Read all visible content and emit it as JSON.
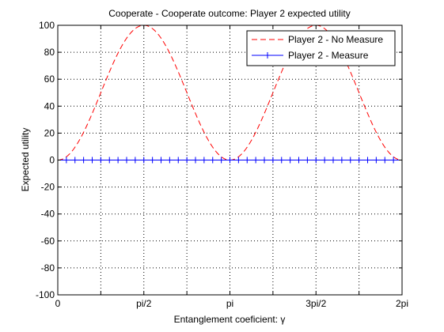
{
  "chart_data": {
    "type": "line",
    "title": "Cooperate - Cooperate outcome: Player 2 expected utility",
    "xlabel": "Entanglement coeficient: γ",
    "ylabel": "Expected utility",
    "xlim": [
      0,
      6.2832
    ],
    "ylim": [
      -100,
      100
    ],
    "xticks": [
      {
        "value": 0,
        "label": "0"
      },
      {
        "value": 1.5708,
        "label": "pi/2"
      },
      {
        "value": 3.1416,
        "label": "pi"
      },
      {
        "value": 4.7124,
        "label": "3pi/2"
      },
      {
        "value": 6.2832,
        "label": "2pi"
      }
    ],
    "x_minor_gridlines": [
      0.7854,
      2.3562,
      3.927,
      5.4978
    ],
    "yticks": [
      -100,
      -80,
      -60,
      -40,
      -20,
      0,
      20,
      40,
      60,
      80,
      100
    ],
    "grid": true,
    "legend_position": "top-right",
    "series": [
      {
        "name": "Player 2 - No Measure",
        "color": "#ff0000",
        "style": "dashed",
        "function": "100*sin(x)^2",
        "x": [
          0,
          0.3142,
          0.6283,
          0.9425,
          1.2566,
          1.5708,
          1.885,
          2.1991,
          2.5133,
          2.8274,
          3.1416,
          3.4558,
          3.7699,
          4.0841,
          4.3982,
          4.7124,
          5.0265,
          5.3407,
          5.6549,
          5.969,
          6.2832
        ],
        "values": [
          0,
          9.55,
          34.55,
          65.45,
          90.45,
          100,
          90.45,
          65.45,
          34.55,
          9.55,
          0,
          9.55,
          34.55,
          65.45,
          90.45,
          100,
          90.45,
          65.45,
          34.55,
          9.55,
          0
        ]
      },
      {
        "name": "Player 2 - Measure",
        "color": "#0000ff",
        "style": "solid",
        "marker": "+",
        "marker_count": 41,
        "values_constant": 0
      }
    ]
  }
}
